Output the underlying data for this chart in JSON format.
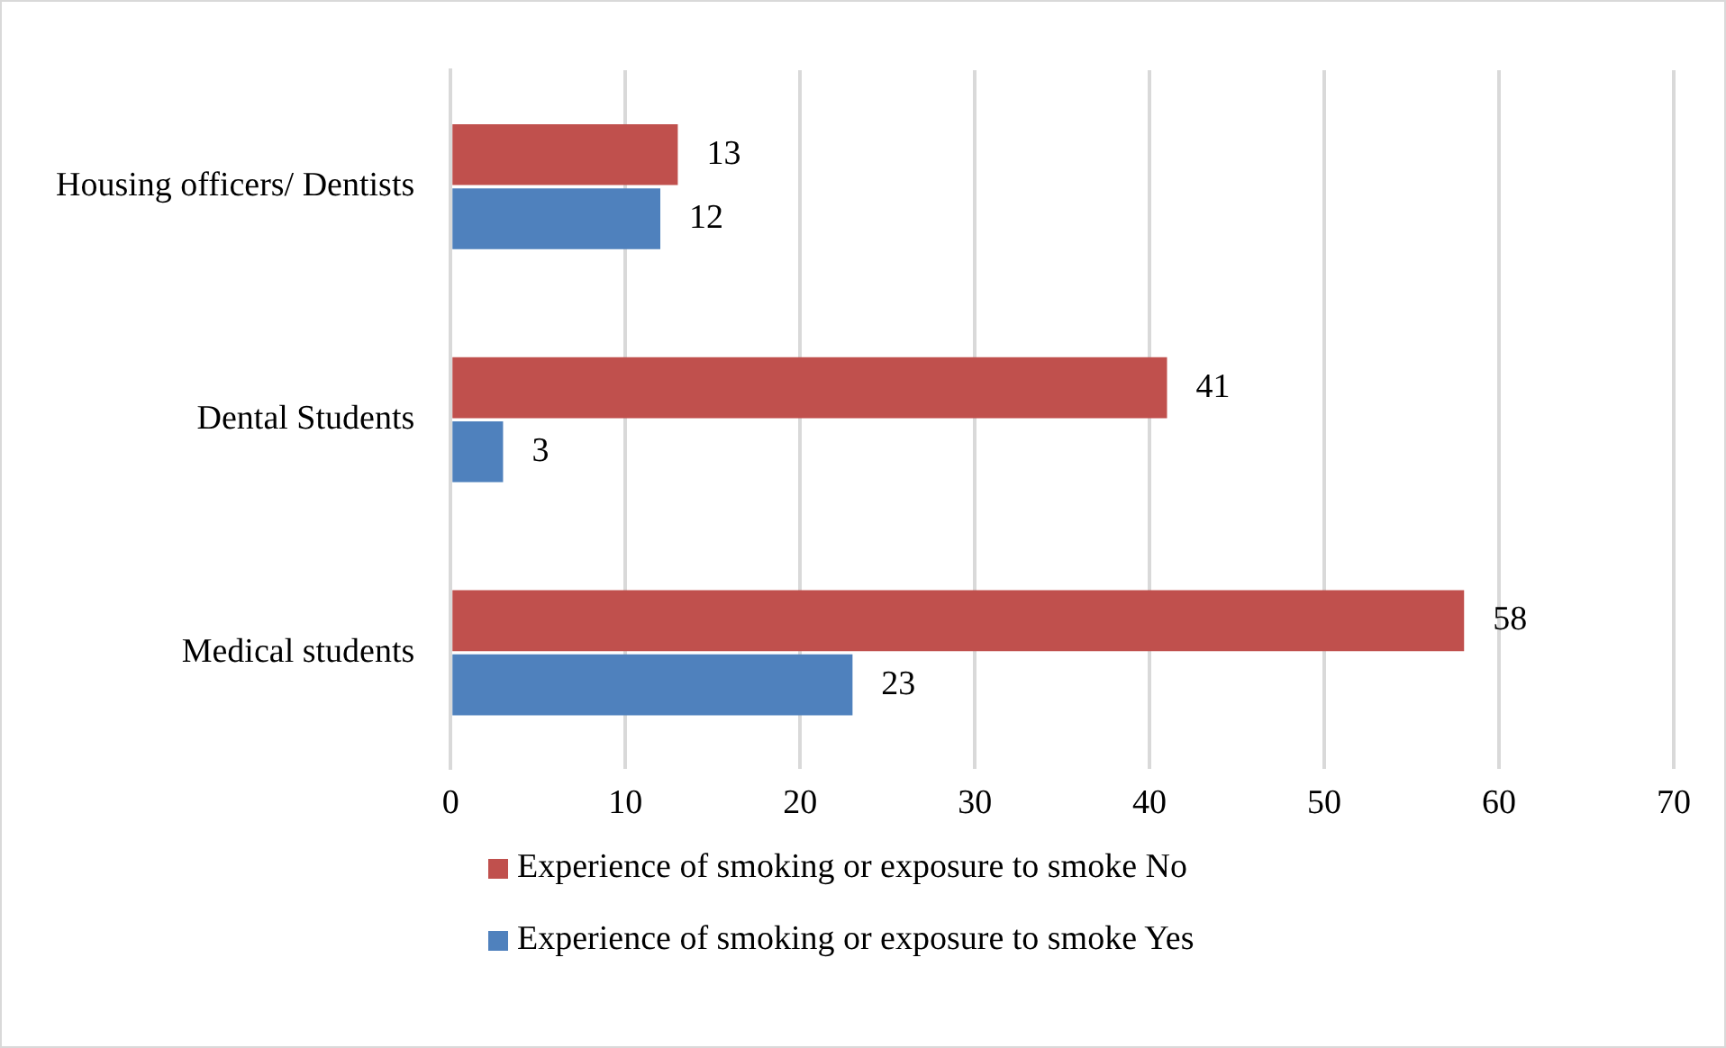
{
  "chart_data": {
    "type": "bar",
    "orientation": "horizontal",
    "categories": [
      "Housing officers/ Dentists",
      "Dental Students",
      "Medical students"
    ],
    "series": [
      {
        "name": "Experience of smoking or exposure to smoke No",
        "color": "#c0504d",
        "values": [
          13,
          41,
          58
        ]
      },
      {
        "name": "Experience of smoking or exposure to smoke Yes",
        "color": "#4f81bd",
        "values": [
          12,
          3,
          23
        ]
      }
    ],
    "xlim": [
      0,
      70
    ],
    "xticks": [
      0,
      10,
      20,
      30,
      40,
      50,
      60,
      70
    ],
    "grid": "x",
    "legend": "bottom",
    "data_labels": true
  }
}
